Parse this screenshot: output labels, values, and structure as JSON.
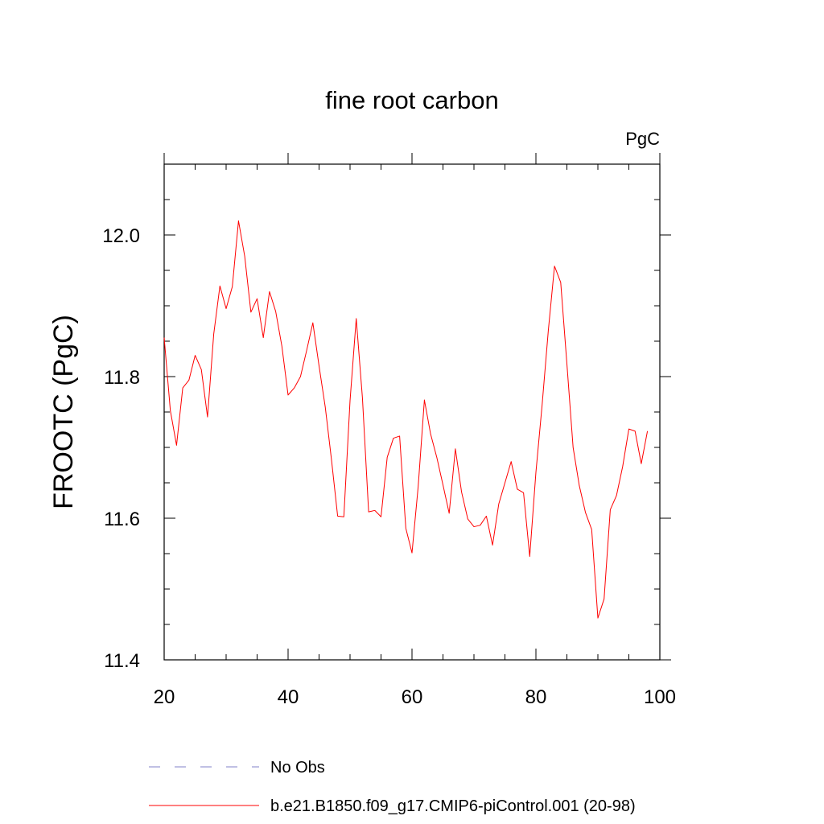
{
  "chart_data": {
    "type": "line",
    "title": "fine root carbon",
    "units_label": "PgC",
    "xlabel": "",
    "ylabel": "FROOTC  (PgC)",
    "xlim": [
      20,
      100
    ],
    "ylim": [
      11.4,
      12.1
    ],
    "x_ticks": [
      20,
      40,
      60,
      80,
      100
    ],
    "x_tick_labels": [
      "20",
      "40",
      "60",
      "80",
      "100"
    ],
    "x_minor_step": 5,
    "y_ticks": [
      11.4,
      11.6,
      11.8,
      12.0
    ],
    "y_tick_labels": [
      "11.4",
      "11.6",
      "11.8",
      "12.0"
    ],
    "y_minor_step": 0.05,
    "grid": false,
    "legend_position": "bottom",
    "legend": [
      {
        "label": "No Obs",
        "style": "dashed",
        "color": "#8080c8"
      },
      {
        "label": "b.e21.B1850.f09_g17.CMIP6-piControl.001 (20-98)",
        "style": "solid",
        "color": "#ff0000"
      }
    ],
    "series": [
      {
        "name": "b.e21.B1850.f09_g17.CMIP6-piControl.001 (20-98)",
        "color": "#ff0000",
        "x": [
          20,
          21,
          22,
          23,
          24,
          25,
          26,
          27,
          28,
          29,
          30,
          31,
          32,
          33,
          34,
          35,
          36,
          37,
          38,
          39,
          40,
          41,
          42,
          43,
          44,
          45,
          46,
          47,
          48,
          49,
          50,
          51,
          52,
          53,
          54,
          55,
          56,
          57,
          58,
          59,
          60,
          61,
          62,
          63,
          64,
          65,
          66,
          67,
          68,
          69,
          70,
          71,
          72,
          73,
          74,
          75,
          76,
          77,
          78,
          79,
          80,
          81,
          82,
          83,
          84,
          85,
          86,
          87,
          88,
          89,
          90,
          91,
          92,
          93,
          94,
          95,
          96,
          97,
          98
        ],
        "values": [
          11.855,
          11.752,
          11.703,
          11.784,
          11.795,
          11.83,
          11.81,
          11.743,
          11.86,
          11.928,
          11.896,
          11.927,
          12.02,
          11.97,
          11.891,
          11.91,
          11.855,
          11.92,
          11.892,
          11.843,
          11.774,
          11.784,
          11.8,
          11.837,
          11.876,
          11.815,
          11.757,
          11.683,
          11.603,
          11.602,
          11.766,
          11.882,
          11.77,
          11.609,
          11.611,
          11.602,
          11.686,
          11.713,
          11.716,
          11.586,
          11.551,
          11.645,
          11.767,
          11.719,
          11.686,
          11.647,
          11.607,
          11.698,
          11.637,
          11.599,
          11.588,
          11.59,
          11.603,
          11.562,
          11.62,
          11.65,
          11.68,
          11.641,
          11.636,
          11.546,
          11.665,
          11.76,
          11.865,
          11.956,
          11.933,
          11.818,
          11.7,
          11.646,
          11.608,
          11.584,
          11.459,
          11.486,
          11.612,
          11.632,
          11.673,
          11.726,
          11.723,
          11.677,
          11.723
        ]
      }
    ]
  }
}
